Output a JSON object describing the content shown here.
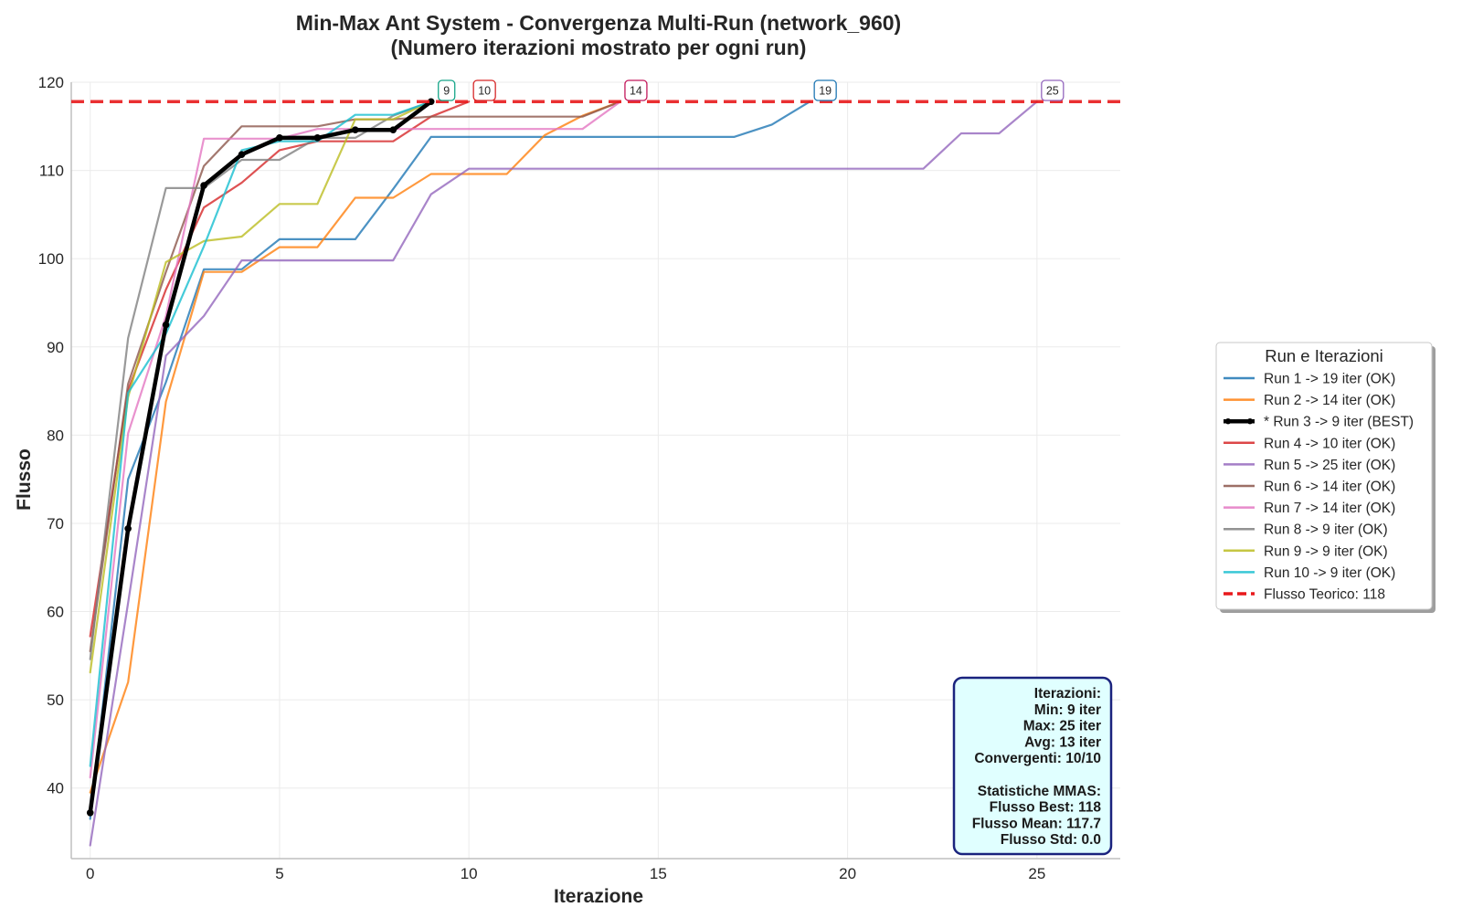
{
  "chart_data": {
    "type": "line",
    "title_line1": "Min-Max Ant System - Convergenza Multi-Run (network_960)",
    "title_line2": "(Numero iterazioni mostrato per ogni run)",
    "xlabel": "Iterazione",
    "ylabel": "Flusso",
    "xlim": [
      -0.5,
      27.2
    ],
    "ylim": [
      32,
      120
    ],
    "xticks": [
      0,
      5,
      10,
      15,
      20,
      25
    ],
    "yticks": [
      40,
      50,
      60,
      70,
      80,
      90,
      100,
      110,
      120
    ],
    "grid": true,
    "legend_placement": "right",
    "legend_title": "Run e Iterazioni",
    "theoretical_flow": {
      "value": 117.8,
      "label": "Flusso Teorico: 118",
      "color": "#e8191c"
    },
    "series": [
      {
        "name": "Run 1 -> 19 iter (OK)",
        "color": "#1f77b4",
        "best": false,
        "iterations_label": "19",
        "y": [
          36.5,
          75.0,
          86.0,
          98.8,
          98.8,
          102.2,
          102.2,
          102.2,
          107.9,
          113.8,
          113.8,
          113.8,
          113.8,
          113.8,
          113.8,
          113.8,
          113.8,
          113.8,
          115.2,
          117.8
        ]
      },
      {
        "name": "Run 2 -> 14 iter (OK)",
        "color": "#ff7f0e",
        "best": false,
        "iterations_label": "14",
        "y": [
          39.5,
          52.0,
          83.8,
          98.5,
          98.5,
          101.3,
          101.3,
          106.9,
          106.9,
          109.6,
          109.6,
          109.6,
          114.0,
          116.2,
          117.8
        ]
      },
      {
        "name": "* Run 3 -> 9 iter (BEST)",
        "color": "#000000",
        "best": true,
        "iterations_label": "9",
        "y": [
          37.2,
          69.4,
          92.5,
          108.3,
          111.8,
          113.7,
          113.7,
          114.6,
          114.6,
          117.8
        ]
      },
      {
        "name": "Run 4 -> 10 iter (OK)",
        "color": "#d62728",
        "best": false,
        "iterations_label": "10",
        "y": [
          57.2,
          85.1,
          96.5,
          105.8,
          108.6,
          112.3,
          113.3,
          113.3,
          113.3,
          116.1,
          117.8
        ]
      },
      {
        "name": "Run 5 -> 25 iter (OK)",
        "color": "#9467bd",
        "best": false,
        "iterations_label": "25",
        "y": [
          33.5,
          61.0,
          89.0,
          93.5,
          99.8,
          99.8,
          99.8,
          99.8,
          99.8,
          107.3,
          110.2,
          110.2,
          110.2,
          110.2,
          110.2,
          110.2,
          110.2,
          110.2,
          110.2,
          110.2,
          110.2,
          110.2,
          110.2,
          114.2,
          114.2,
          117.8
        ]
      },
      {
        "name": "Run 6 -> 14 iter (OK)",
        "color": "#8c564b",
        "best": false,
        "iterations_label": "14",
        "y": [
          55.5,
          85.8,
          98.5,
          110.5,
          115.0,
          115.0,
          115.0,
          115.8,
          115.8,
          116.1,
          116.1,
          116.1,
          116.1,
          116.1,
          117.8
        ]
      },
      {
        "name": "Run 7 -> 14 iter (OK)",
        "color": "#e377c2",
        "best": false,
        "iterations_label": "14",
        "y": [
          41.2,
          80.2,
          93.5,
          113.6,
          113.6,
          113.6,
          114.7,
          114.7,
          114.7,
          114.7,
          114.7,
          114.7,
          114.7,
          114.7,
          117.8
        ]
      },
      {
        "name": "Run 8 -> 9 iter (OK)",
        "color": "#7f7f7f",
        "best": false,
        "iterations_label": "9",
        "y": [
          54.6,
          91.0,
          108.0,
          108.0,
          111.2,
          111.2,
          113.7,
          113.7,
          116.2,
          117.8
        ]
      },
      {
        "name": "Run 9 -> 9 iter (OK)",
        "color": "#bcbd22",
        "best": false,
        "iterations_label": "9",
        "y": [
          53.1,
          84.3,
          99.6,
          102.0,
          102.5,
          106.2,
          106.2,
          115.8,
          115.8,
          117.8
        ]
      },
      {
        "name": "Run 10 -> 9 iter (OK)",
        "color": "#17becf",
        "best": false,
        "iterations_label": "9",
        "y": [
          42.5,
          84.8,
          91.5,
          101.4,
          112.3,
          113.3,
          113.3,
          116.3,
          116.3,
          117.8
        ]
      }
    ],
    "end_labels": [
      {
        "x": 9,
        "text": "9",
        "color": "#17a589"
      },
      {
        "x": 10,
        "text": "10",
        "color": "#d62728"
      },
      {
        "x": 14,
        "text": "14",
        "color": "#c2185b"
      },
      {
        "x": 19,
        "text": "19",
        "color": "#1f77b4"
      },
      {
        "x": 25,
        "text": "25",
        "color": "#9467bd"
      }
    ],
    "stats_box": {
      "lines": [
        "Iterazioni:",
        "Min: 9 iter",
        "Max: 25 iter",
        "Avg: 13 iter",
        "Convergenti: 10/10",
        "",
        "Statistiche MMAS:",
        "Flusso Best: 118",
        "Flusso Mean: 117.7",
        "Flusso Std: 0.0"
      ],
      "border_color": "#1a237e",
      "fill_color": "#e0ffff"
    }
  }
}
